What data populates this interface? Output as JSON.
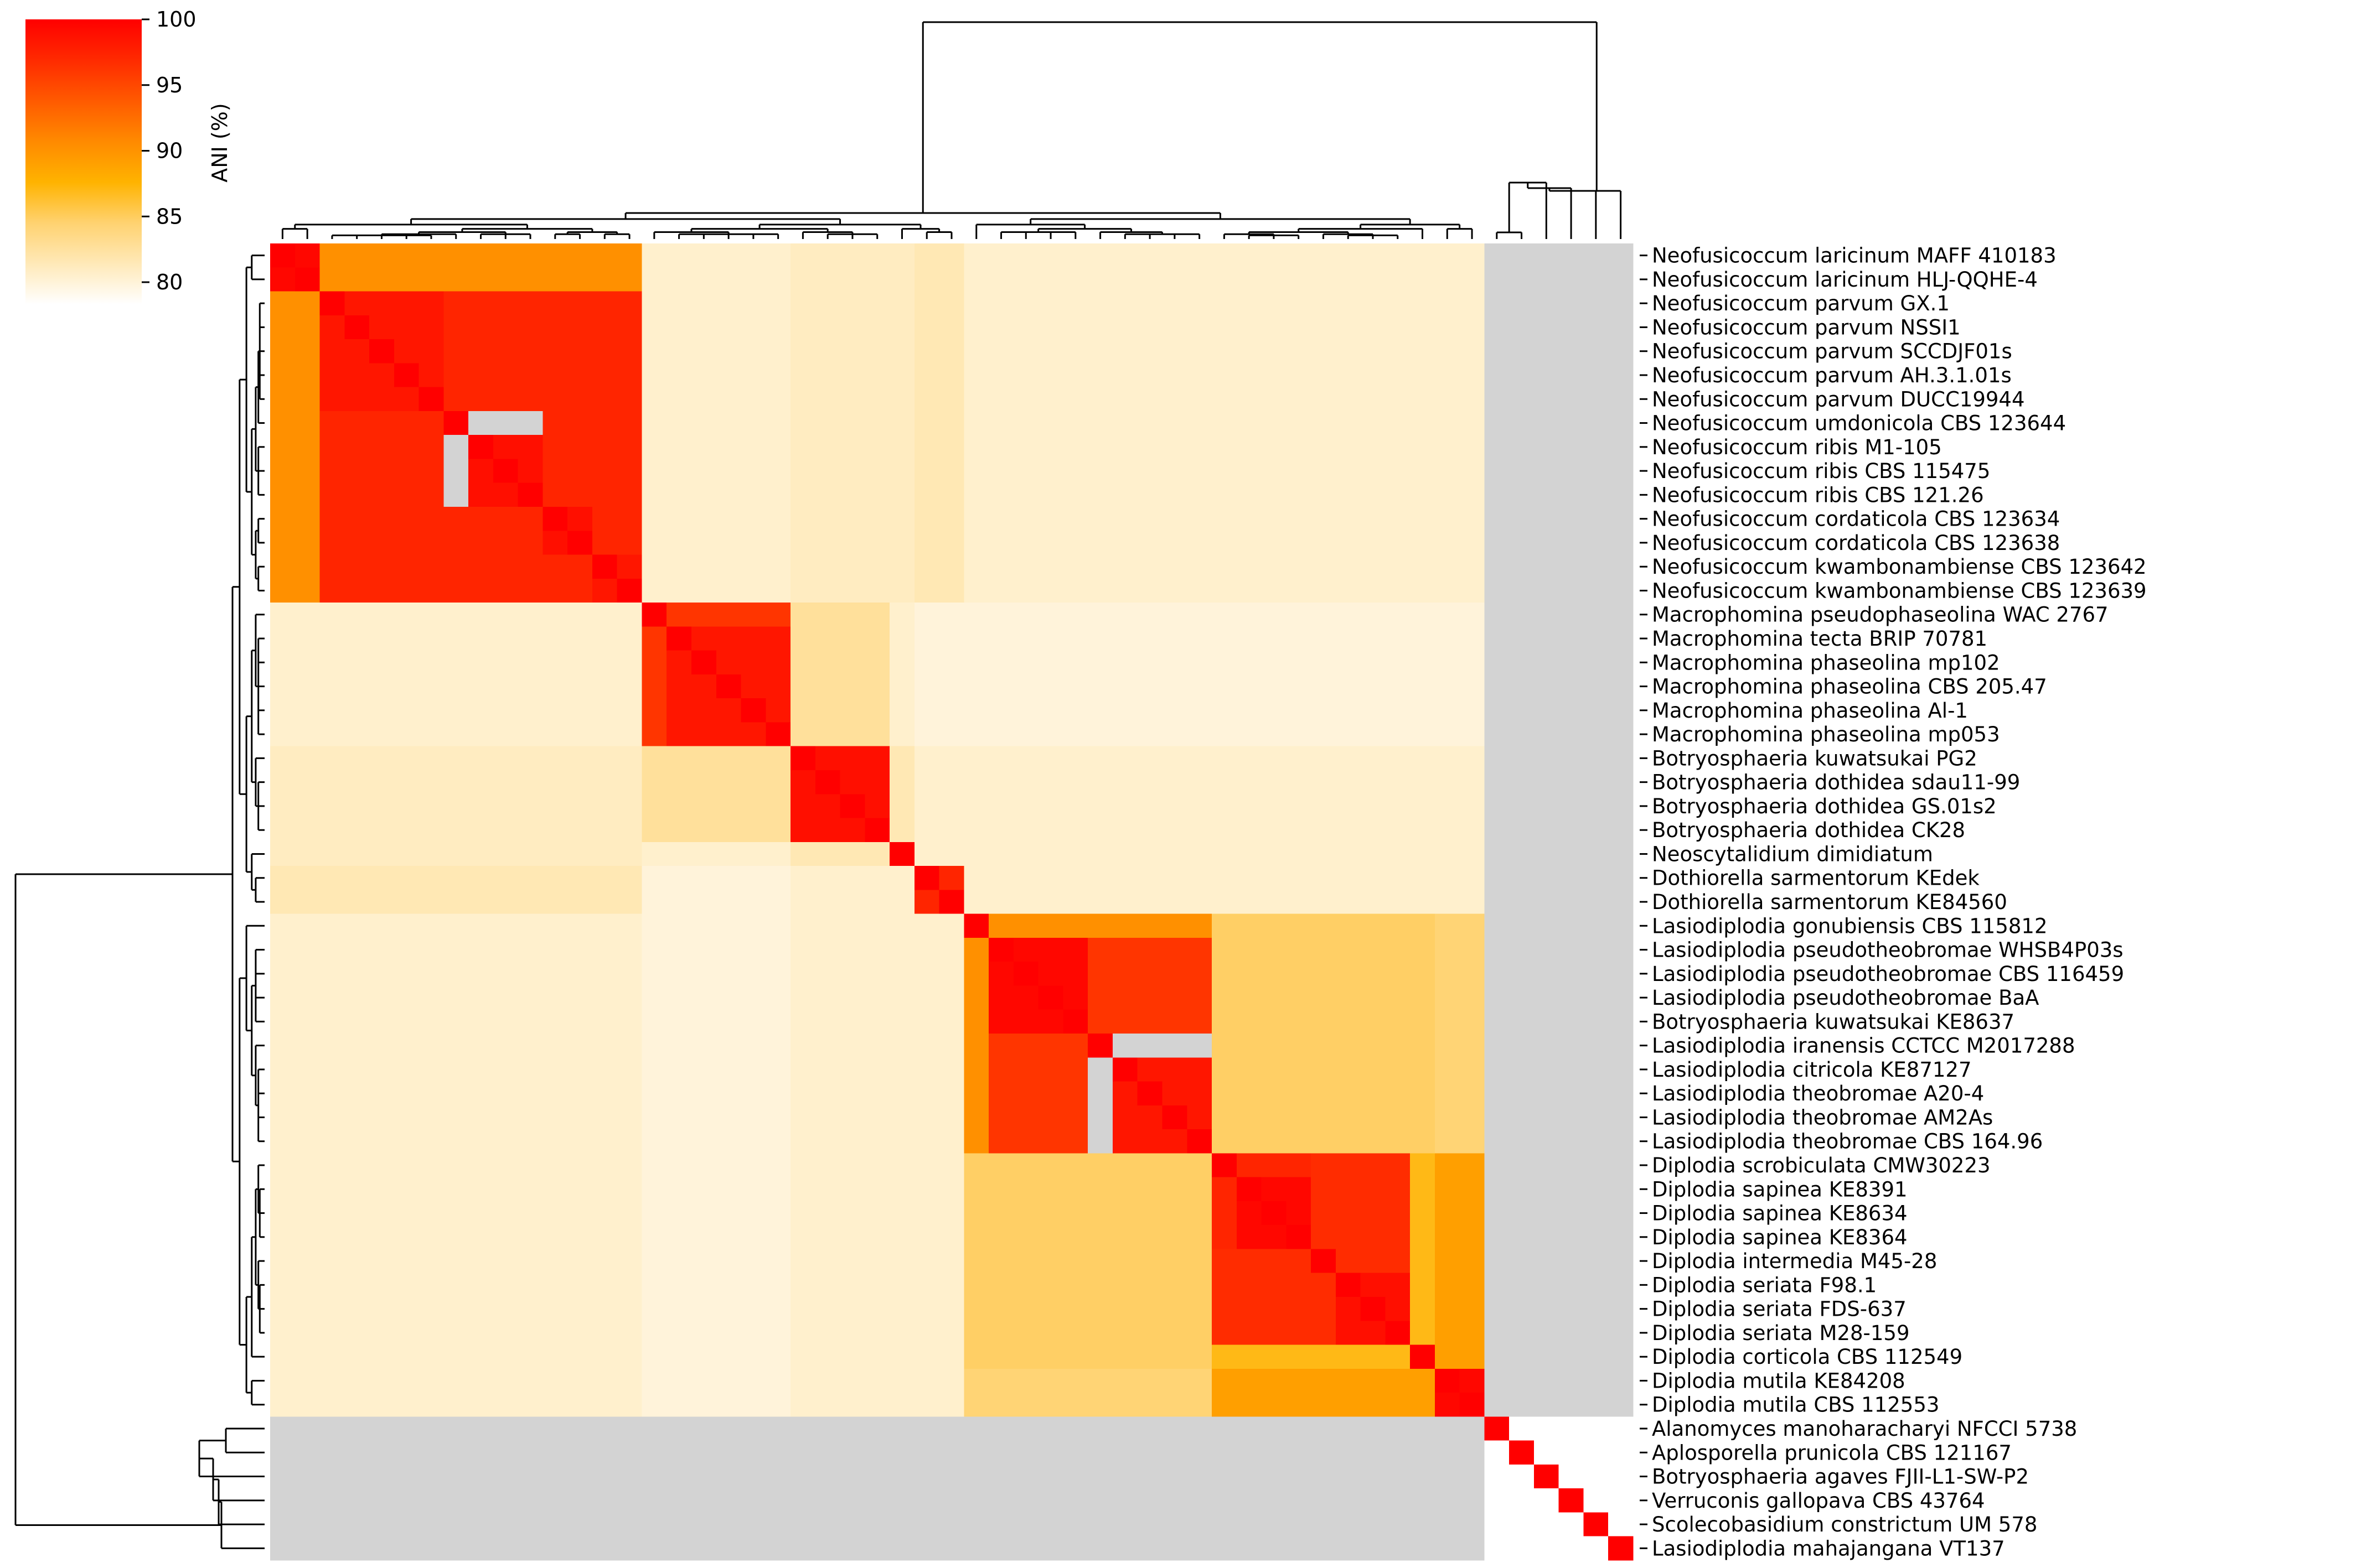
{
  "chart_data": {
    "type": "heatmap",
    "title": "",
    "value_range": [
      80,
      100
    ],
    "colorbar": {
      "label": "ANI (%)",
      "ticks": [
        100,
        95,
        90,
        85,
        80
      ],
      "colors": [
        "#ffffff",
        "#ffe9b8",
        "#ffd270",
        "#ffb300",
        "#ff8a00",
        "#ff5a00",
        "#ff2a00",
        "#ff0000"
      ]
    },
    "missing_color": "#d3d3d3",
    "labels": [
      "Neofusicoccum laricinum MAFF 410183",
      "Neofusicoccum laricinum HLJ-QQHE-4",
      "Neofusicoccum parvum GX.1",
      "Neofusicoccum parvum NSSI1",
      "Neofusicoccum parvum SCCDJF01s",
      "Neofusicoccum parvum AH.3.1.01s",
      "Neofusicoccum parvum DUCC19944",
      "Neofusicoccum umdonicola CBS 123644",
      "Neofusicoccum ribis M1-105",
      "Neofusicoccum ribis CBS 115475",
      "Neofusicoccum ribis CBS 121.26",
      "Neofusicoccum cordaticola CBS 123634",
      "Neofusicoccum cordaticola CBS 123638",
      "Neofusicoccum kwambonambiense CBS 123642",
      "Neofusicoccum kwambonambiense CBS 123639",
      "Macrophomina pseudophaseolina WAC 2767",
      "Macrophomina tecta BRIP 70781",
      "Macrophomina phaseolina mp102",
      "Macrophomina phaseolina CBS 205.47",
      "Macrophomina phaseolina Al-1",
      "Macrophomina phaseolina mp053",
      "Botryosphaeria kuwatsukai PG2",
      "Botryosphaeria dothidea sdau11-99",
      "Botryosphaeria dothidea GS.01s2",
      "Botryosphaeria dothidea CK28",
      "Neoscytalidium dimidiatum",
      "Dothiorella sarmentorum KEdek",
      "Dothiorella sarmentorum KE84560",
      "Lasiodiplodia gonubiensis CBS 115812",
      "Lasiodiplodia pseudotheobromae WHSB4P03s",
      "Lasiodiplodia pseudotheobromae CBS 116459",
      "Lasiodiplodia pseudotheobromae BaA",
      "Botryosphaeria kuwatsukai KE8637",
      "Lasiodiplodia iranensis CCTCC M2017288",
      "Lasiodiplodia citricola KE87127",
      "Lasiodiplodia theobromae A20-4",
      "Lasiodiplodia theobromae AM2As",
      "Lasiodiplodia theobromae CBS 164.96",
      "Diplodia scrobiculata CMW30223",
      "Diplodia sapinea KE8391",
      "Diplodia sapinea KE8634",
      "Diplodia sapinea KE8364",
      "Diplodia intermedia M45-28",
      "Diplodia seriata F98.1",
      "Diplodia seriata FDS-637",
      "Diplodia seriata M28-159",
      "Diplodia corticola CBS 112549",
      "Diplodia mutila KE84208",
      "Diplodia mutila CBS 112553",
      "Alanomyces manoharacharyi NFCCI 5738",
      "Aplosporella prunicola CBS 121167",
      "Botryosphaeria agaves FJII-L1-SW-P2",
      "Verruconis gallopava CBS 43764",
      "Scolecobasidium constrictum UM 578",
      "Lasiodiplodia mahajangana VT137"
    ],
    "within_cluster_values": [
      {
        "rows": [
          0,
          1
        ],
        "value": 99.5
      },
      {
        "rows": [
          2,
          6
        ],
        "value": 98.5
      },
      {
        "rows": [
          7,
          7
        ],
        "value": 97.5
      },
      {
        "rows": [
          8,
          10
        ],
        "value": 99.0
      },
      {
        "rows": [
          11,
          12
        ],
        "value": 99.0
      },
      {
        "rows": [
          13,
          14
        ],
        "value": 98.5
      },
      {
        "rows": [
          15,
          15
        ],
        "value": 99.5
      },
      {
        "rows": [
          16,
          20
        ],
        "value": 98.5
      },
      {
        "rows": [
          21,
          24
        ],
        "value": 99.0
      },
      {
        "rows": [
          25,
          25
        ],
        "value": 100
      },
      {
        "rows": [
          26,
          27
        ],
        "value": 97.5
      },
      {
        "rows": [
          28,
          28
        ],
        "value": 100
      },
      {
        "rows": [
          29,
          32
        ],
        "value": 99.5
      },
      {
        "rows": [
          33,
          33
        ],
        "value": 100
      },
      {
        "rows": [
          34,
          37
        ],
        "value": 98.5
      },
      {
        "rows": [
          38,
          38
        ],
        "value": 100
      },
      {
        "rows": [
          39,
          41
        ],
        "value": 99.5
      },
      {
        "rows": [
          42,
          42
        ],
        "value": 100
      },
      {
        "rows": [
          43,
          45
        ],
        "value": 99.0
      },
      {
        "rows": [
          46,
          46
        ],
        "value": 100
      },
      {
        "rows": [
          47,
          48
        ],
        "value": 99.5
      }
    ],
    "between_group_values": [
      {
        "rows": [
          0,
          1
        ],
        "cols": [
          2,
          14
        ],
        "value": 91
      },
      {
        "rows": [
          2,
          6
        ],
        "cols": [
          7,
          10
        ],
        "value": 97.5
      },
      {
        "rows": [
          2,
          10
        ],
        "cols": [
          11,
          14
        ],
        "value": 97.5
      },
      {
        "rows": [
          11,
          12
        ],
        "cols": [
          13,
          14
        ],
        "value": 97.5
      },
      {
        "rows": [
          15,
          15
        ],
        "cols": [
          16,
          20
        ],
        "value": 96.5
      },
      {
        "rows": [
          21,
          21
        ],
        "cols": [
          22,
          24
        ],
        "value": 96.0
      },
      {
        "rows": [
          26,
          26
        ],
        "cols": [
          27,
          27
        ],
        "value": 95.5
      },
      {
        "rows": [
          28,
          28
        ],
        "cols": [
          29,
          37
        ],
        "value": 91
      },
      {
        "rows": [
          29,
          32
        ],
        "cols": [
          33,
          37
        ],
        "value": 96.5
      },
      {
        "rows": [
          38,
          38
        ],
        "cols": [
          39,
          41
        ],
        "value": 97.5
      },
      {
        "rows": [
          38,
          41
        ],
        "cols": [
          42,
          45
        ],
        "value": 97
      },
      {
        "rows": [
          42,
          42
        ],
        "cols": [
          43,
          45
        ],
        "value": 97
      },
      {
        "rows": [
          38,
          46
        ],
        "cols": [
          47,
          48
        ],
        "value": 90
      },
      {
        "rows": [
          38,
          45
        ],
        "cols": [
          46,
          46
        ],
        "value": 88
      },
      {
        "rows": [
          28,
          37
        ],
        "cols": [
          38,
          46
        ],
        "value": 86
      },
      {
        "rows": [
          28,
          37
        ],
        "cols": [
          47,
          48
        ],
        "value": 85.5
      },
      {
        "rows": [
          0,
          14
        ],
        "cols": [
          15,
          20
        ],
        "value": 82
      },
      {
        "rows": [
          0,
          14
        ],
        "cols": [
          21,
          24
        ],
        "value": 82.5
      },
      {
        "rows": [
          0,
          14
        ],
        "cols": [
          25,
          25
        ],
        "value": 82.5
      },
      {
        "rows": [
          0,
          14
        ],
        "cols": [
          26,
          27
        ],
        "value": 83
      },
      {
        "rows": [
          0,
          14
        ],
        "cols": [
          28,
          48
        ],
        "value": 82
      },
      {
        "rows": [
          15,
          20
        ],
        "cols": [
          21,
          24
        ],
        "value": 84
      },
      {
        "rows": [
          15,
          20
        ],
        "cols": [
          25,
          25
        ],
        "value": 82
      },
      {
        "rows": [
          15,
          20
        ],
        "cols": [
          26,
          27
        ],
        "value": 81.5
      },
      {
        "rows": [
          15,
          20
        ],
        "cols": [
          28,
          48
        ],
        "value": 81.5
      },
      {
        "rows": [
          21,
          24
        ],
        "cols": [
          25,
          25
        ],
        "value": 83
      },
      {
        "rows": [
          21,
          24
        ],
        "cols": [
          26,
          27
        ],
        "value": 82
      },
      {
        "rows": [
          21,
          24
        ],
        "cols": [
          28,
          48
        ],
        "value": 82
      },
      {
        "rows": [
          25,
          25
        ],
        "cols": [
          26,
          27
        ],
        "value": 82
      },
      {
        "rows": [
          25,
          25
        ],
        "cols": [
          28,
          48
        ],
        "value": 82
      },
      {
        "rows": [
          26,
          27
        ],
        "cols": [
          28,
          48
        ],
        "value": 82
      }
    ],
    "missing_block": {
      "description": "values between rows 0-48 and rows 49-54 are not available",
      "rows": [
        0,
        48
      ],
      "cols": [
        49,
        54
      ]
    },
    "outgroup_values": [
      {
        "rows": [
          49,
          49
        ],
        "cols": [
          49,
          49
        ],
        "value": 100
      },
      {
        "rows": [
          49,
          49
        ],
        "cols": [
          50,
          50
        ],
        "value": 80
      },
      {
        "rows": [
          50,
          50
        ],
        "cols": [
          50,
          50
        ],
        "value": 100
      },
      {
        "rows": [
          51,
          51
        ],
        "cols": [
          51,
          51
        ],
        "value": 100
      },
      {
        "rows": [
          52,
          52
        ],
        "cols": [
          52,
          52
        ],
        "value": 100
      },
      {
        "rows": [
          53,
          53
        ],
        "cols": [
          53,
          53
        ],
        "value": 100
      },
      {
        "rows": [
          54,
          54
        ],
        "cols": [
          54,
          54
        ],
        "value": 100
      }
    ],
    "dendrogram": {
      "root": [
        [
          [
            [
              0,
              1
            ],
            [
              [
                [
                  [
                    2,
                    3,
                    4,
                    5,
                    6
                  ],
                  7
                ],
                [
                  8,
                  9,
                  10
                ]
              ],
              [
                [
                  11,
                  12
                ],
                [
                  13,
                  14
                ]
              ]
            ]
          ],
          [
            [
              [
                15,
                [
                  16,
                  17,
                  18,
                  19,
                  20
                ]
              ],
              [
                21,
                [
                  22,
                  23,
                  24
                ]
              ]
            ],
            [
              25,
              [
                26,
                27
              ]
            ]
          ]
        ],
        [
          [
            28,
            [
              [
                29,
                30,
                31,
                32
              ],
              [
                33,
                [
                  34,
                  35,
                  36,
                  37
                ]
              ]
            ]
          ],
          [
            [
              [
                [
                  38,
                  [
                    39,
                    40,
                    41
                  ]
                ],
                [
                  42,
                  [
                    43,
                    44,
                    45
                  ]
                ]
              ],
              46
            ],
            [
              47,
              48
            ]
          ]
        ]
      ],
      "outgroups": [
        [
          49,
          50
        ],
        51,
        52,
        53,
        54
      ]
    }
  }
}
